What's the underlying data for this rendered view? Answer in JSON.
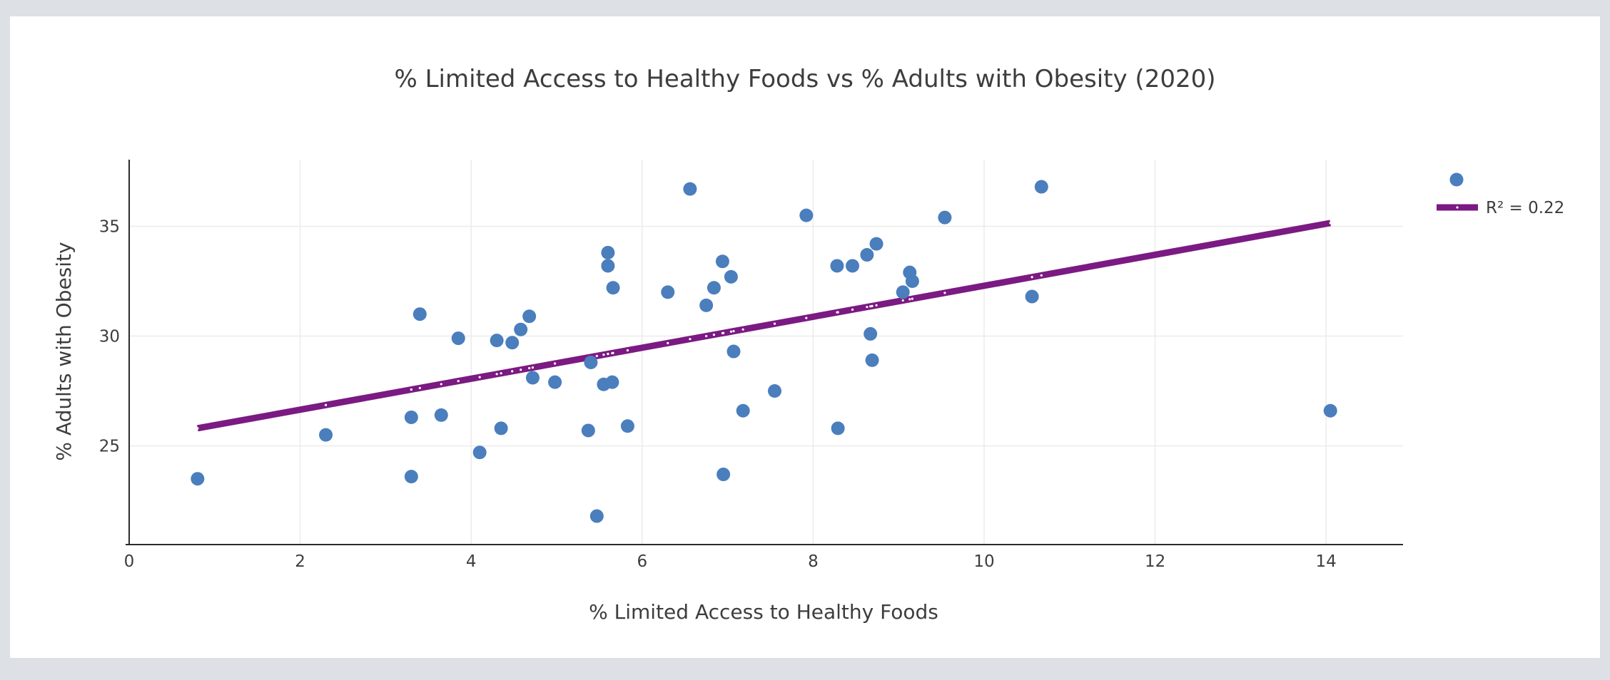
{
  "colors": {
    "background": "#dde0e5",
    "card": "#ffffff",
    "points": "#4a7ebd",
    "trendline": "#7b1a82",
    "trendline_dots": "#ffffff",
    "text": "#3d3d3d",
    "grid": "#ebebeb",
    "axis": "#2b2b2b"
  },
  "chart_data": {
    "type": "scatter",
    "title": "% Limited Access to Healthy Foods vs % Adults with Obesity (2020)",
    "xlabel": "% Limited Access to Healthy Foods",
    "ylabel": "% Adults with Obesity",
    "xlim": [
      0,
      14.9
    ],
    "ylim": [
      20.5,
      38
    ],
    "x_ticks": [
      0,
      2,
      4,
      6,
      8,
      10,
      12,
      14
    ],
    "y_ticks": [
      25,
      30,
      35
    ],
    "grid": true,
    "legend_position": "top-right",
    "series": [
      {
        "marker": "circle",
        "color": "#4a7ebd",
        "points": [
          [
            0.8,
            23.5
          ],
          [
            2.3,
            25.5
          ],
          [
            3.3,
            26.3
          ],
          [
            3.3,
            23.6
          ],
          [
            3.4,
            31.0
          ],
          [
            3.65,
            26.4
          ],
          [
            3.85,
            29.9
          ],
          [
            4.1,
            24.7
          ],
          [
            4.3,
            29.8
          ],
          [
            4.35,
            25.8
          ],
          [
            4.48,
            29.7
          ],
          [
            4.58,
            30.3
          ],
          [
            4.68,
            30.9
          ],
          [
            4.72,
            28.1
          ],
          [
            4.98,
            27.9
          ],
          [
            5.37,
            25.7
          ],
          [
            5.4,
            28.8
          ],
          [
            5.47,
            21.8
          ],
          [
            5.55,
            27.8
          ],
          [
            5.6,
            33.8
          ],
          [
            5.6,
            33.2
          ],
          [
            5.65,
            27.9
          ],
          [
            5.66,
            32.2
          ],
          [
            5.83,
            25.9
          ],
          [
            6.3,
            32.0
          ],
          [
            6.56,
            36.7
          ],
          [
            6.75,
            31.4
          ],
          [
            6.84,
            32.2
          ],
          [
            6.94,
            33.4
          ],
          [
            6.95,
            23.7
          ],
          [
            7.04,
            32.7
          ],
          [
            7.07,
            29.3
          ],
          [
            7.18,
            26.6
          ],
          [
            7.55,
            27.5
          ],
          [
            7.92,
            35.5
          ],
          [
            8.28,
            33.2
          ],
          [
            8.29,
            25.8
          ],
          [
            8.46,
            33.2
          ],
          [
            8.63,
            33.7
          ],
          [
            8.67,
            30.1
          ],
          [
            8.69,
            28.9
          ],
          [
            8.74,
            34.2
          ],
          [
            9.05,
            32.0
          ],
          [
            9.13,
            32.9
          ],
          [
            9.16,
            32.5
          ],
          [
            9.54,
            35.4
          ],
          [
            10.56,
            31.8
          ],
          [
            10.67,
            36.8
          ],
          [
            14.05,
            26.6
          ]
        ]
      },
      {
        "name": "R² = 0.22",
        "type": "line",
        "color": "#7b1a82",
        "x": [
          0.8,
          14.05
        ],
        "y": [
          25.8,
          35.15
        ]
      }
    ]
  }
}
